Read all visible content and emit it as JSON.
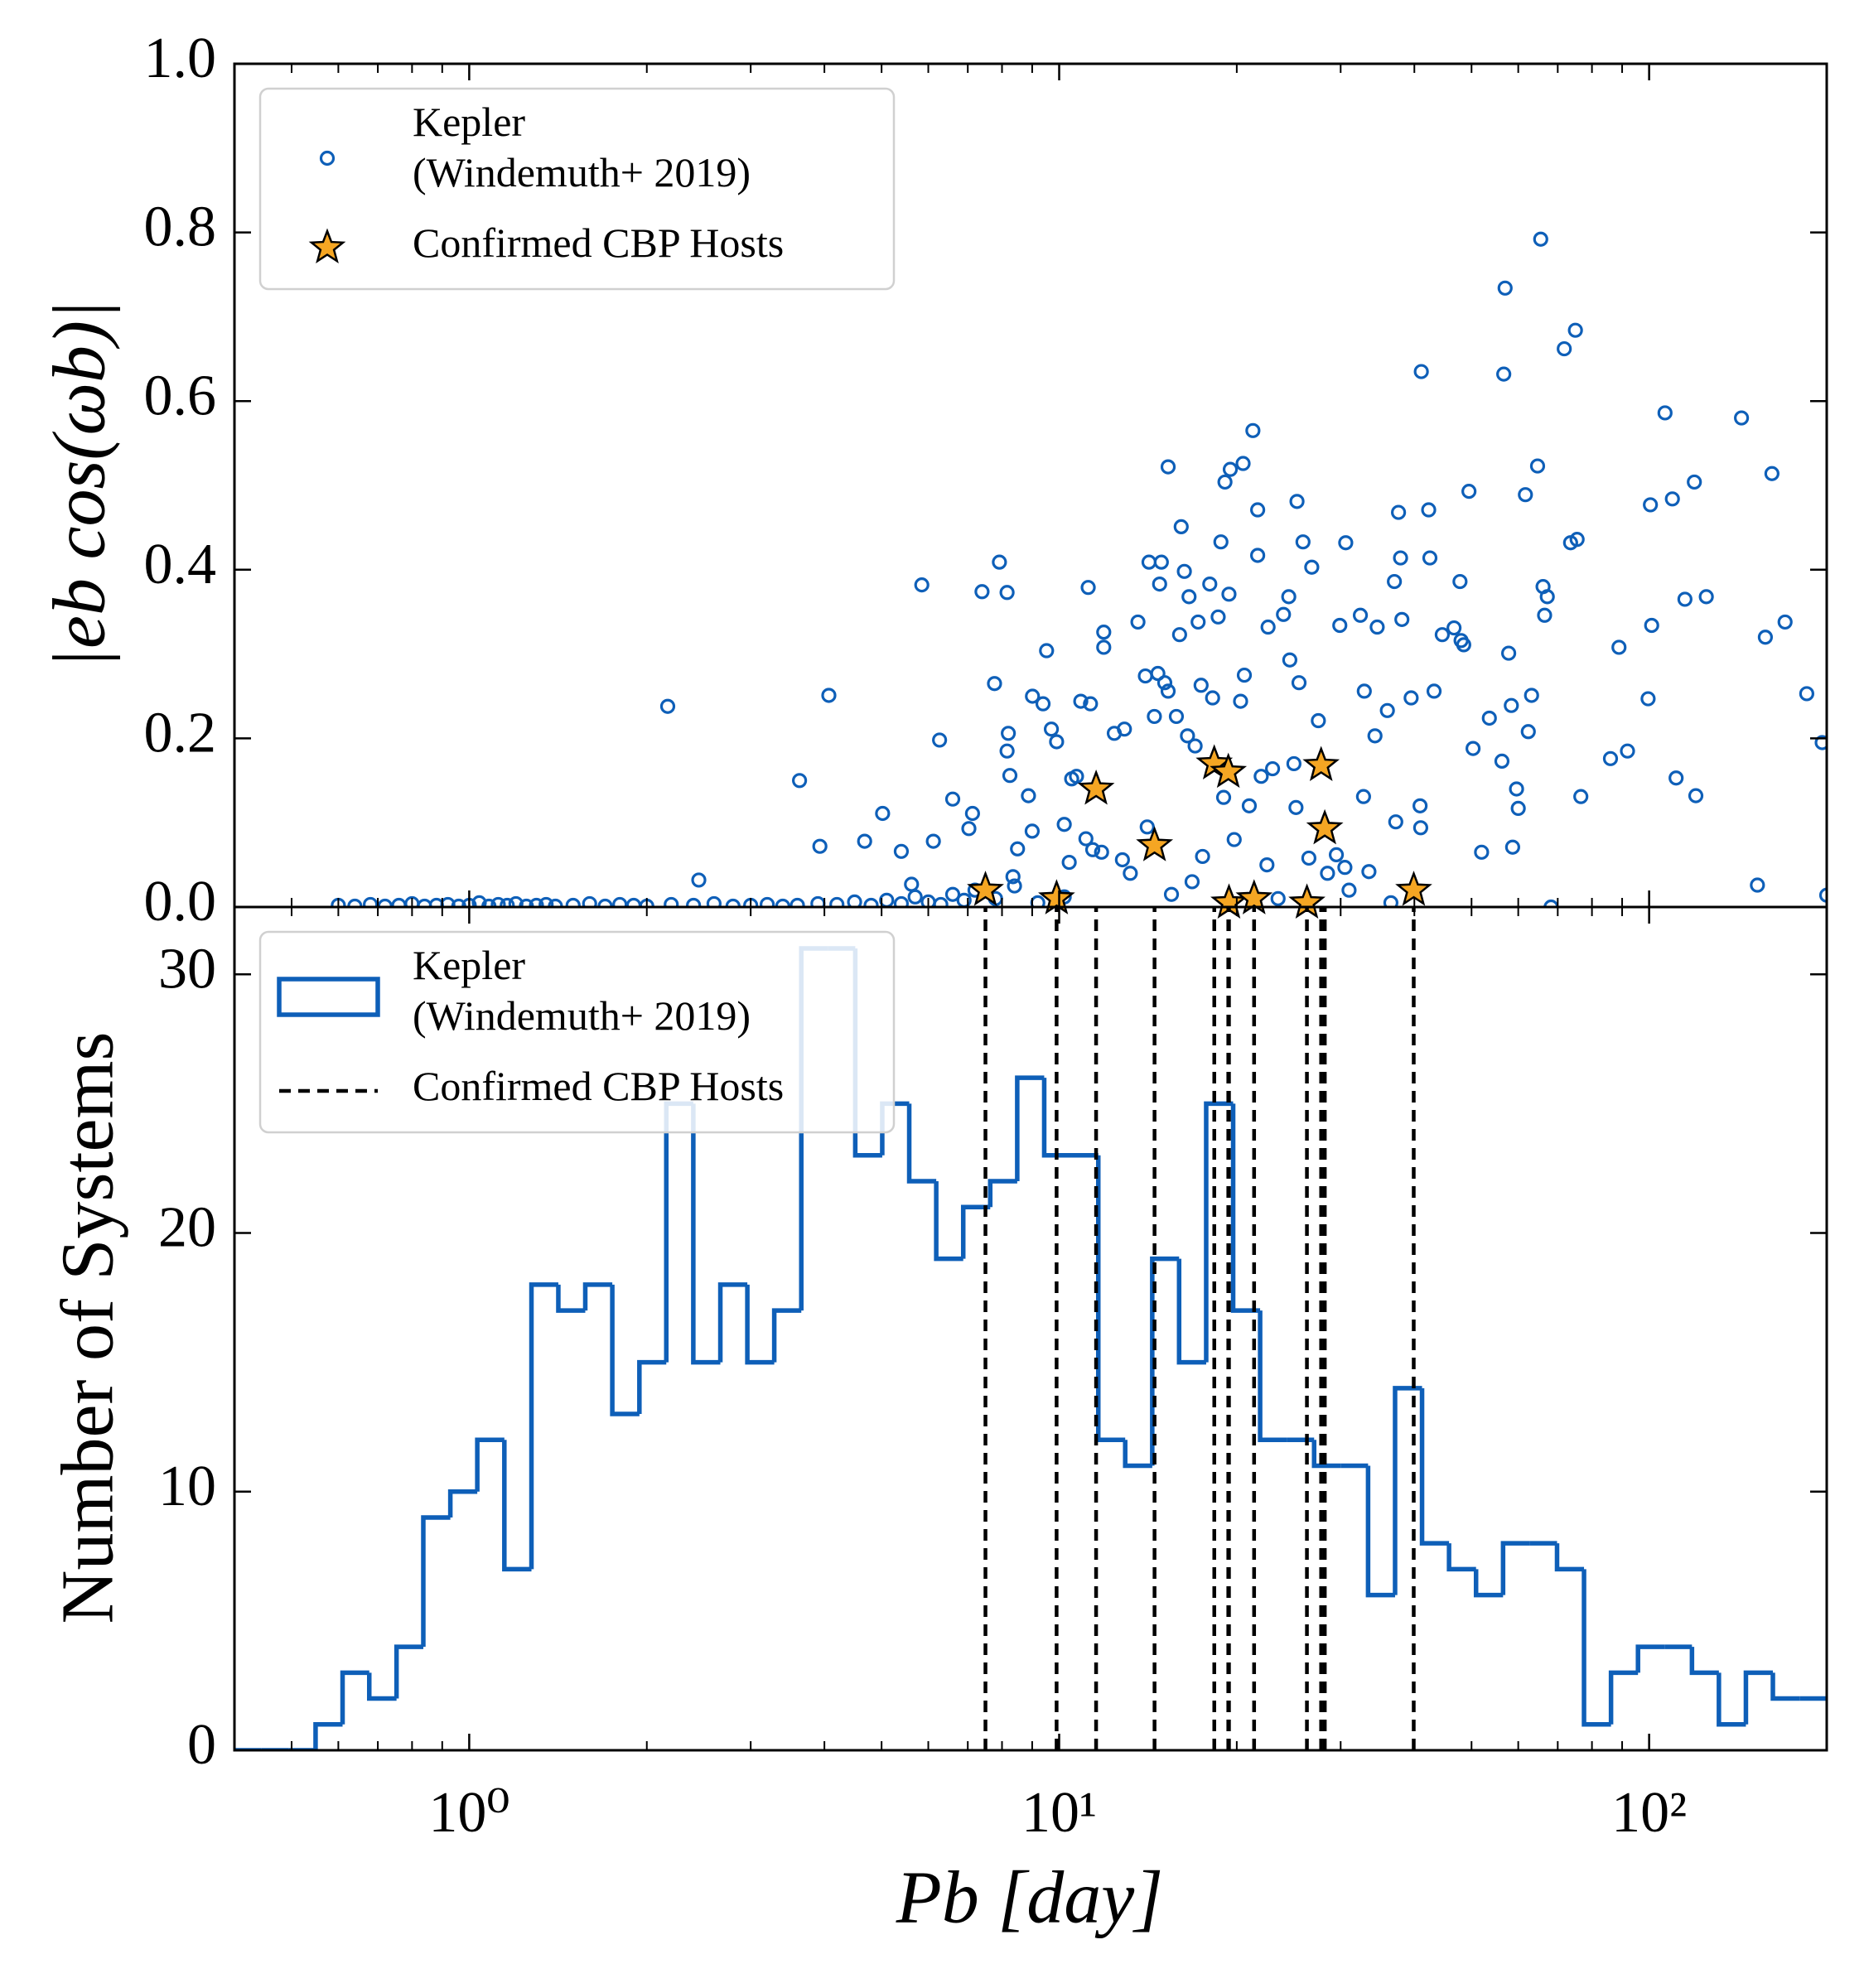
{
  "chart_data": [
    {
      "type": "scatter",
      "ylabel": "|eb cos(ωb)|",
      "xscale": "log",
      "xlim": [
        0.4,
        200
      ],
      "xticks": [
        1,
        10,
        100
      ],
      "show_xticklabels": false,
      "xminorticks": [
        0.5,
        0.6,
        0.7,
        0.8,
        0.9,
        2,
        3,
        4,
        5,
        6,
        7,
        8,
        9,
        20,
        30,
        40,
        50,
        60,
        70,
        80,
        90,
        200
      ],
      "ylim": [
        0,
        1
      ],
      "yticks": [
        {
          "value": 0,
          "label": "0.0"
        },
        0.2,
        0.4,
        0.6,
        0.8,
        {
          "value": 1,
          "label": "1.0"
        }
      ],
      "legend": "upper left",
      "series": [
        {
          "name": "Kepler\n(Windemuth+ 2019)",
          "color": "#0e5fb8",
          "marker": "circle",
          "x": [
            0.6,
            0.64,
            0.68,
            0.72,
            0.76,
            0.8,
            0.84,
            0.88,
            0.92,
            0.96,
            1.0,
            1.04,
            1.08,
            1.12,
            1.16,
            1.2,
            1.25,
            1.3,
            1.35,
            1.4,
            1.5,
            1.6,
            1.7,
            1.8,
            1.9,
            2.0,
            2.2,
            2.4,
            2.6,
            2.8,
            3.0,
            3.2,
            3.4,
            3.6,
            3.9,
            4.2,
            4.5,
            4.8,
            5.1,
            5.4,
            5.7,
            6.0,
            6.3,
            6.6,
            6.9,
            7.2,
            7.8,
            8.4,
            9.2,
            10.2,
            2.17,
            4.07,
            3.63,
            3.93,
            2.45,
            5.85,
            7.4,
            7.92,
            8.16,
            7.77,
            6.27,
            5.02,
            4.68,
            5.4,
            6.12,
            7.03,
            7.13,
            6.6,
            5.62,
            9.52,
            9.01,
            9.39,
            8.2,
            8.16,
            8.25,
            8.87,
            9.0,
            8.5,
            8.35,
            9.7,
            9.9,
            10.88,
            11.3,
            11.2,
            11.9,
            11.9,
            12.4,
            12.9,
            10.7,
            10.5,
            10.2,
            11.1,
            11.4,
            11.8,
            12.8,
            10.4,
            13.6,
            14.0,
            14.2,
            14.9,
            14.7,
            15.1,
            14.8,
            14.5,
            15.8,
            15.3,
            16.3,
            16.0,
            15.3,
            17.2,
            16.6,
            16.1,
            18.0,
            18.8,
            18.6,
            18.2,
            17.4,
            16.5,
            17.0,
            19.1,
            19.5,
            20.5,
            21.3,
            21.7,
            21.7,
            19.4,
            20.6,
            20.3,
            22.6,
            24.0,
            24.5,
            24.6,
            25.5,
            25.3,
            25.9,
            26.8,
            27.5,
            30.6,
            29.9,
            32.4,
            34.6,
            34.3,
            32.9,
            36.0,
            32.8,
            37.0,
            37.6,
            37.9,
            38.1,
            39.5,
            40.9,
            41.1,
            42.3,
            42.5,
            43.2,
            44.6,
            46.7,
            47.8,
            48.5,
            49.5,
            50.3,
            53.6,
            56.3,
            57.0,
            56.7,
            57.8,
            58.4,
            58.7,
            59.6,
            62.4,
            63.2,
            64.7,
            65.5,
            61.7,
            66.1,
            66.5,
            67.2,
            60.0,
            71.8,
            75.0,
            73.6,
            75.5,
            76.6,
            68.2,
            86.0,
            88.9,
            91.9,
            100.5,
            101.0,
            99.6,
            106.4,
            109.5,
            111.1,
            119.3,
            120.0,
            143.4,
            161.5,
            157.4,
            170.0,
            185.0,
            196.5,
            152.6,
            200,
            115,
            125,
            41.0,
            37.2,
            52,
            48,
            30.5,
            13.2,
            14.1,
            15.5,
            16.8,
            17.5,
            19.8,
            21.0,
            22.5,
            23.5,
            25.2,
            26.5,
            28.5,
            29.5,
            31.0,
            33.5,
            36.5,
            19.0,
            22.0,
            23.0,
            25.0
          ],
          "values": [
            0.002,
            0.001,
            0.003,
            0.001,
            0.002,
            0.004,
            0.001,
            0.002,
            0.003,
            0.001,
            0.002,
            0.005,
            0.001,
            0.003,
            0.002,
            0.004,
            0.001,
            0.002,
            0.003,
            0.001,
            0.002,
            0.004,
            0.001,
            0.003,
            0.002,
            0.001,
            0.003,
            0.002,
            0.004,
            0.001,
            0.002,
            0.003,
            0.001,
            0.002,
            0.004,
            0.003,
            0.006,
            0.002,
            0.008,
            0.004,
            0.012,
            0.006,
            0.003,
            0.015,
            0.008,
            0.02,
            0.01,
            0.025,
            0.005,
            0.012,
            0.238,
            0.251,
            0.15,
            0.072,
            0.032,
            0.382,
            0.374,
            0.409,
            0.373,
            0.265,
            0.198,
            0.111,
            0.078,
            0.066,
            0.078,
            0.093,
            0.111,
            0.128,
            0.027,
            0.304,
            0.25,
            0.241,
            0.206,
            0.185,
            0.156,
            0.132,
            0.09,
            0.069,
            0.036,
            0.211,
            0.196,
            0.244,
            0.241,
            0.379,
            0.326,
            0.308,
            0.206,
            0.211,
            0.155,
            0.152,
            0.098,
            0.081,
            0.068,
            0.065,
            0.056,
            0.053,
            0.338,
            0.274,
            0.409,
            0.409,
            0.277,
            0.266,
            0.383,
            0.226,
            0.226,
            0.256,
            0.398,
            0.323,
            0.522,
            0.338,
            0.368,
            0.451,
            0.383,
            0.433,
            0.344,
            0.248,
            0.263,
            0.203,
            0.191,
            0.504,
            0.519,
            0.526,
            0.565,
            0.471,
            0.417,
            0.371,
            0.275,
            0.244,
            0.332,
            0.347,
            0.368,
            0.293,
            0.266,
            0.481,
            0.433,
            0.403,
            0.221,
            0.432,
            0.334,
            0.346,
            0.332,
            0.203,
            0.256,
            0.233,
            0.131,
            0.386,
            0.468,
            0.414,
            0.341,
            0.248,
            0.12,
            0.635,
            0.471,
            0.414,
            0.256,
            0.323,
            0.331,
            0.386,
            0.311,
            0.493,
            0.188,
            0.224,
            0.173,
            0.734,
            0.632,
            0.301,
            0.239,
            0.071,
            0.14,
            0.208,
            0.251,
            0.523,
            0.792,
            0.489,
            0.38,
            0.346,
            0.368,
            0.117,
            0.662,
            0.684,
            0.432,
            0.436,
            0.131,
            0.0,
            0.176,
            0.308,
            0.185,
            0.477,
            0.334,
            0.247,
            0.586,
            0.484,
            0.153,
            0.504,
            0.132,
            0.58,
            0.514,
            0.32,
            0.338,
            0.253,
            0.195,
            0.026,
            0.014,
            0.365,
            0.368,
            0.094,
            0.101,
            0.065,
            0.316,
            0.047,
            0.04,
            0.095,
            0.015,
            0.03,
            0.06,
            0.08,
            0.12,
            0.05,
            0.01,
            0.118,
            0.058,
            0.04,
            0.062,
            0.02,
            0.042,
            0.005,
            0.13,
            0.155,
            0.164,
            0.17
          ]
        },
        {
          "name": "Confirmed CBP Hosts",
          "color": "#f5a623",
          "marker": "star",
          "x": [
            7.5,
            9.9,
            11.55,
            14.51,
            18.32,
            19.35,
            19.4,
            21.4,
            26.3,
            27.8,
            28.2,
            39.9
          ],
          "values": [
            0.02,
            0.01,
            0.14,
            0.073,
            0.17,
            0.16,
            0.005,
            0.01,
            0.005,
            0.168,
            0.093,
            0.02
          ]
        }
      ]
    },
    {
      "type": "histogram",
      "xlabel": "Pb [day]",
      "ylabel": "Number of Systems",
      "xscale": "log",
      "xlim": [
        0.4,
        200
      ],
      "xticks": [
        {
          "value": 1,
          "label": "10⁰"
        },
        {
          "value": 10,
          "label": "10¹"
        },
        {
          "value": 100,
          "label": "10²"
        }
      ],
      "xminorticks": [
        0.5,
        0.6,
        0.7,
        0.8,
        0.9,
        2,
        3,
        4,
        5,
        6,
        7,
        8,
        9,
        20,
        30,
        40,
        50,
        60,
        70,
        80,
        90,
        200
      ],
      "ylim": [
        0,
        32.6
      ],
      "yticks": [
        0,
        10,
        20,
        30
      ],
      "legend": "upper left",
      "bins": [
        0.4,
        0.444,
        0.494,
        0.549,
        0.61,
        0.677,
        0.753,
        0.836,
        0.929,
        1.032,
        1.147,
        1.275,
        1.416,
        1.573,
        1.748,
        1.943,
        2.158,
        2.398,
        2.665,
        2.961,
        3.289,
        3.655,
        4.061,
        4.512,
        5.013,
        5.57,
        6.189,
        6.877,
        7.641,
        8.49,
        9.433,
        10.48,
        11.65,
        12.94,
        14.38,
        15.97,
        17.75,
        19.72,
        21.91,
        24.34,
        27.05,
        30.05,
        33.39,
        37.1,
        41.22,
        45.8,
        50.89,
        56.55,
        62.83,
        69.81,
        77.56,
        86.18,
        95.75,
        106.4,
        118.2,
        131.3,
        145.9,
        162.1,
        180.2,
        200
      ],
      "series": [
        {
          "name": "Kepler\n(Windemuth+ 2019)",
          "color": "#0e5fb8",
          "values": [
            0,
            0,
            0,
            1,
            3,
            2,
            4,
            9,
            10,
            12,
            7,
            18,
            17,
            18,
            13,
            15,
            25,
            15,
            18,
            15,
            17,
            31,
            31,
            23,
            25,
            22,
            19,
            21,
            22,
            26,
            23,
            23,
            12,
            11,
            19,
            15,
            25,
            17,
            12,
            12,
            11,
            11,
            6,
            14,
            8,
            7,
            6,
            8,
            8,
            7,
            1,
            3,
            4,
            4,
            3,
            1,
            3,
            2,
            2
          ]
        }
      ],
      "vlines": {
        "name": "Confirmed CBP Hosts",
        "color": "#000000",
        "linestyle": "dashed",
        "x": [
          7.5,
          9.9,
          11.55,
          14.51,
          18.32,
          19.35,
          19.4,
          21.4,
          26.3,
          27.8,
          28.2,
          39.9
        ]
      }
    }
  ]
}
